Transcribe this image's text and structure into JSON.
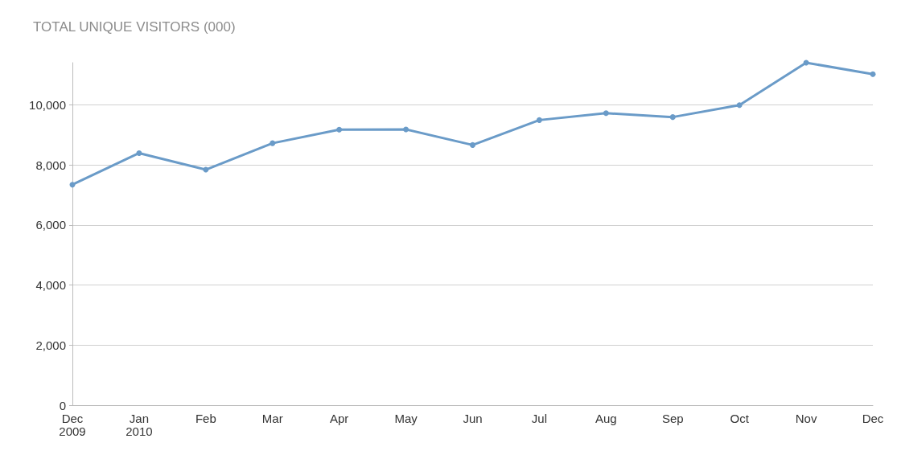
{
  "chart_data": {
    "type": "line",
    "title": "TOTAL UNIQUE VISITORS (000)",
    "categories": [
      "Dec 2009",
      "Jan 2010",
      "Feb",
      "Mar",
      "Apr",
      "May",
      "Jun",
      "Jul",
      "Aug",
      "Sep",
      "Oct",
      "Nov",
      "Dec"
    ],
    "series": [
      {
        "color": "#6a9bc8",
        "values": [
          7340,
          8390,
          7840,
          8720,
          9170,
          9180,
          8660,
          9490,
          9720,
          9590,
          9990,
          11400,
          11020
        ]
      }
    ],
    "ylim": [
      0,
      11400
    ],
    "yticks": [
      0,
      {
        "value": 2000,
        "label": "2,000"
      },
      {
        "value": 4000,
        "label": "4,000"
      },
      {
        "value": 6000,
        "label": "6,000"
      },
      {
        "value": 8000,
        "label": "8,000"
      },
      {
        "value": 10000,
        "label": "10,000"
      }
    ],
    "grid": "y",
    "marker": "circle",
    "line_style": "solid"
  }
}
